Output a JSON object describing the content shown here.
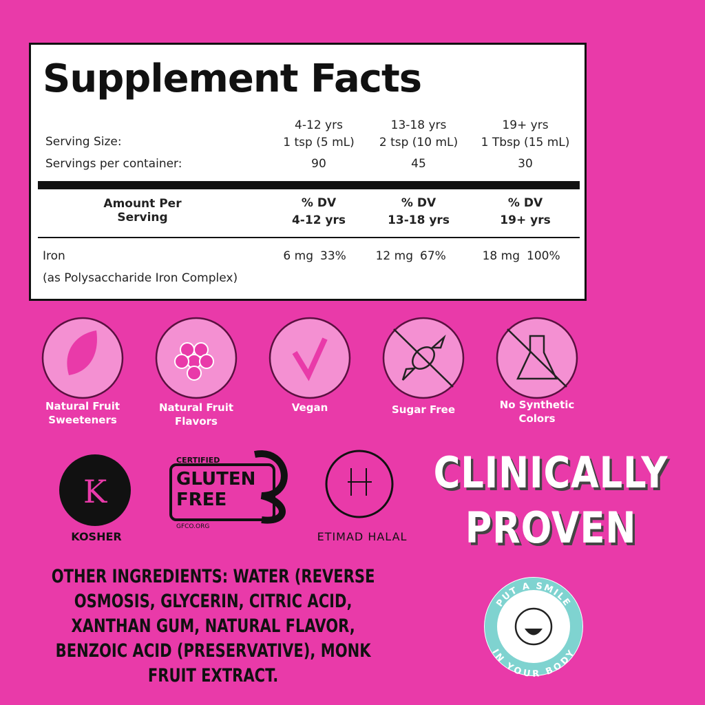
{
  "facts": {
    "title": "Supplement Facts",
    "serving_size_label": "Serving Size:",
    "servings_label": "Servings per container:",
    "groups": [
      {
        "age": "4-12 yrs",
        "size": "1 tsp (5 mL)",
        "servings": 90
      },
      {
        "age": "13-18 yrs",
        "size": "2 tsp (10 mL)",
        "servings": 45
      },
      {
        "age": "19+ yrs",
        "size": "1 Tbsp (15 mL)",
        "servings": 30
      }
    ],
    "amount_header": "Amount Per Serving",
    "dv_header": "% DV",
    "nutrient": {
      "name": "Iron",
      "source": "(as Polysaccharide Iron Complex)",
      "amounts": [
        {
          "amount": "6 mg",
          "dv": "33%"
        },
        {
          "amount": "12 mg",
          "dv": "67%"
        },
        {
          "amount": "18 mg",
          "dv": "100%"
        }
      ]
    }
  },
  "icons": [
    "Natural Fruit Sweeteners",
    "Natural Fruit Flavors",
    "Vegan",
    "Sugar Free",
    "No Synthetic Colors"
  ],
  "certifications": {
    "kosher": "KOSHER",
    "gluten_certified": "CERTIFIED",
    "gluten_line1": "GLUTEN",
    "gluten_line2": "FREE",
    "gluten_site": "GFCO.ORG",
    "halal": "ETIMAD HALAL"
  },
  "claim": {
    "line1": "CLINICALLY",
    "line2": "PROVEN"
  },
  "badge": {
    "top": "PUT A SMILE",
    "bottom": "IN YOUR BODY"
  },
  "ingredients": "OTHER INGREDIENTS: WATER (REVERSE OSMOSIS, GLYCERIN, CITRIC ACID, XANTHAN GUM, NATURAL FLAVOR, BENZOIC ACID (PRESERVATIVE), MONK FRUIT EXTRACT."
}
